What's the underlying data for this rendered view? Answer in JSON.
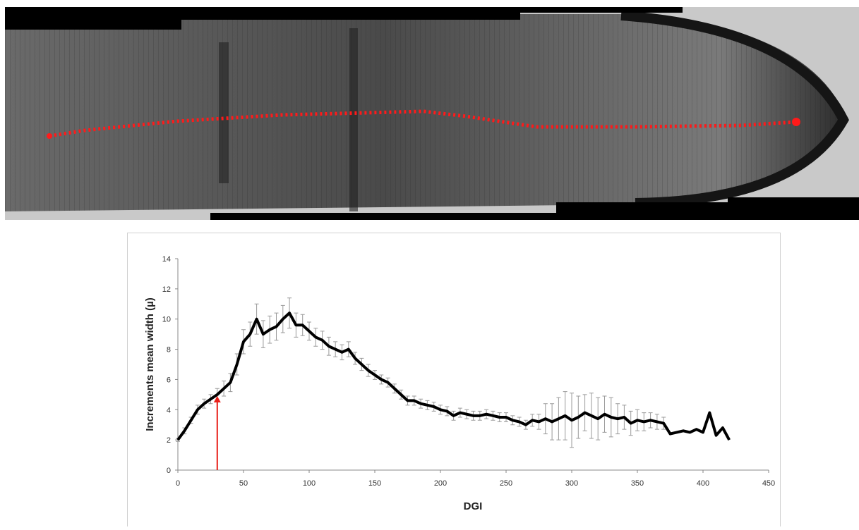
{
  "chart_data": {
    "type": "line",
    "ylabel": "Increments mean width (µ)",
    "xlabel": "DGI",
    "color": "#000000",
    "error_color": "#9a9a9a",
    "x": [
      0,
      5,
      10,
      15,
      20,
      25,
      30,
      35,
      40,
      45,
      50,
      55,
      60,
      65,
      70,
      75,
      80,
      85,
      90,
      95,
      100,
      105,
      110,
      115,
      120,
      125,
      130,
      135,
      140,
      145,
      150,
      155,
      160,
      165,
      170,
      175,
      180,
      185,
      190,
      195,
      200,
      205,
      210,
      215,
      220,
      225,
      230,
      235,
      240,
      245,
      250,
      255,
      260,
      265,
      270,
      275,
      280,
      285,
      290,
      295,
      300,
      305,
      310,
      315,
      320,
      325,
      330,
      335,
      340,
      345,
      350,
      355,
      360,
      365,
      370,
      375,
      380,
      385,
      390,
      395,
      400,
      405,
      410,
      415,
      420
    ],
    "values": [
      2.0,
      2.6,
      3.3,
      4.0,
      4.4,
      4.7,
      5.0,
      5.4,
      5.8,
      7.0,
      8.5,
      9.0,
      10.0,
      9.0,
      9.3,
      9.5,
      10.0,
      10.4,
      9.6,
      9.6,
      9.2,
      8.8,
      8.6,
      8.2,
      8.0,
      7.8,
      8.0,
      7.4,
      7.0,
      6.6,
      6.3,
      6.0,
      5.8,
      5.4,
      5.0,
      4.6,
      4.6,
      4.4,
      4.3,
      4.2,
      4.0,
      3.9,
      3.6,
      3.8,
      3.7,
      3.6,
      3.6,
      3.7,
      3.6,
      3.5,
      3.5,
      3.3,
      3.2,
      3.0,
      3.3,
      3.2,
      3.4,
      3.2,
      3.4,
      3.6,
      3.3,
      3.5,
      3.8,
      3.6,
      3.4,
      3.7,
      3.5,
      3.4,
      3.5,
      3.1,
      3.3,
      3.2,
      3.3,
      3.2,
      3.1,
      2.4,
      2.5,
      2.6,
      2.5,
      2.7,
      2.5,
      3.8,
      2.3,
      2.8,
      2.0
    ],
    "errors": [
      0.1,
      0.2,
      0.2,
      0.3,
      0.3,
      0.3,
      0.4,
      0.5,
      0.6,
      0.7,
      0.8,
      0.8,
      1.0,
      0.9,
      0.9,
      0.9,
      0.9,
      1.0,
      0.8,
      0.7,
      0.6,
      0.6,
      0.6,
      0.6,
      0.5,
      0.5,
      0.5,
      0.4,
      0.4,
      0.4,
      0.3,
      0.3,
      0.3,
      0.3,
      0.3,
      0.3,
      0.3,
      0.3,
      0.3,
      0.3,
      0.3,
      0.3,
      0.3,
      0.3,
      0.3,
      0.3,
      0.3,
      0.3,
      0.3,
      0.3,
      0.3,
      0.3,
      0.3,
      0.3,
      0.4,
      0.5,
      1.0,
      1.2,
      1.4,
      1.6,
      1.8,
      1.4,
      1.2,
      1.5,
      1.4,
      1.2,
      1.3,
      1.0,
      0.8,
      0.8,
      0.7,
      0.6,
      0.5,
      0.5,
      0.4,
      null,
      null,
      null,
      null,
      null,
      null,
      null,
      null,
      null,
      null
    ],
    "xlim": [
      0,
      450
    ],
    "xticks": [
      0,
      50,
      100,
      150,
      200,
      250,
      300,
      350,
      400,
      450
    ],
    "ylim": [
      0,
      14
    ],
    "yticks": [
      0,
      2,
      4,
      6,
      8,
      10,
      12,
      14
    ],
    "marker": {
      "x": 30,
      "y": 4.9,
      "color": "#e8201a"
    }
  }
}
